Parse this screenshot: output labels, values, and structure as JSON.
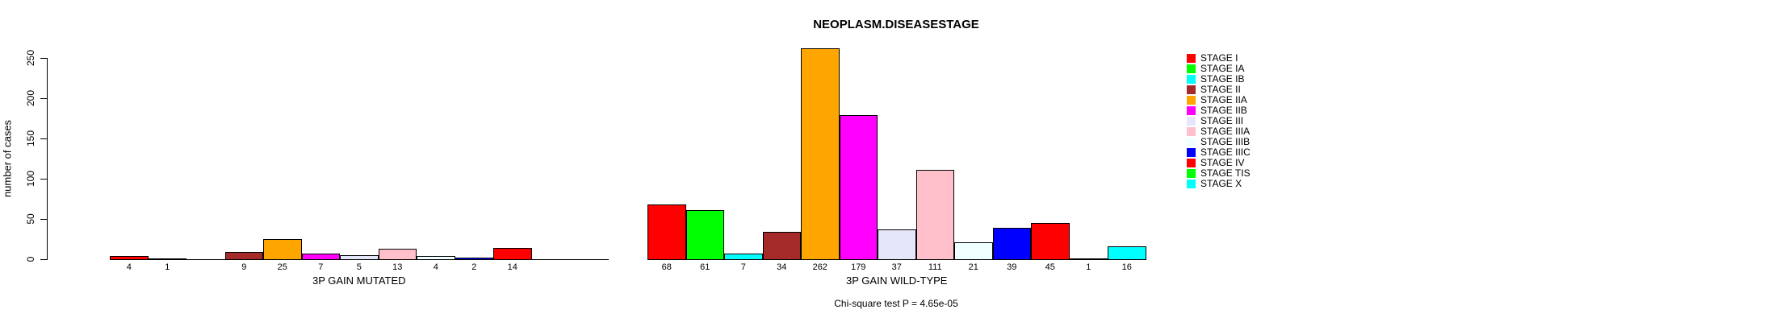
{
  "chart_data": {
    "type": "bar",
    "title": "NEOPLASM.DISEASESTAGE",
    "ylabel": "number of cases",
    "footer": "Chi-square test P = 4.65e-05",
    "ylim": [
      0,
      250
    ],
    "yticks": [
      0,
      50,
      100,
      150,
      200,
      250
    ],
    "grid": false,
    "legend_position": "right",
    "categories": [
      "STAGE I",
      "STAGE IA",
      "STAGE IB",
      "STAGE II",
      "STAGE IIA",
      "STAGE IIB",
      "STAGE III",
      "STAGE IIIA",
      "STAGE IIIB",
      "STAGE IIIC",
      "STAGE IV",
      "STAGE TIS",
      "STAGE X"
    ],
    "colors": [
      "#FF0000",
      "#00FF00",
      "#00FFFF",
      "#A52A2A",
      "#FFA500",
      "#FF00FF",
      "#E6E6FA",
      "#FFC0CB",
      "#F0FFFF",
      "#0000FF",
      "#FF0000",
      "#00FF00",
      "#00FFFF"
    ],
    "series": [
      {
        "name": "3P GAIN MUTATED",
        "values": [
          4,
          1,
          0,
          9,
          25,
          7,
          5,
          13,
          4,
          2,
          14,
          0,
          0
        ]
      },
      {
        "name": "3P GAIN WILD-TYPE",
        "values": [
          68,
          61,
          7,
          34,
          262,
          179,
          37,
          111,
          21,
          39,
          45,
          1,
          16
        ]
      }
    ]
  }
}
